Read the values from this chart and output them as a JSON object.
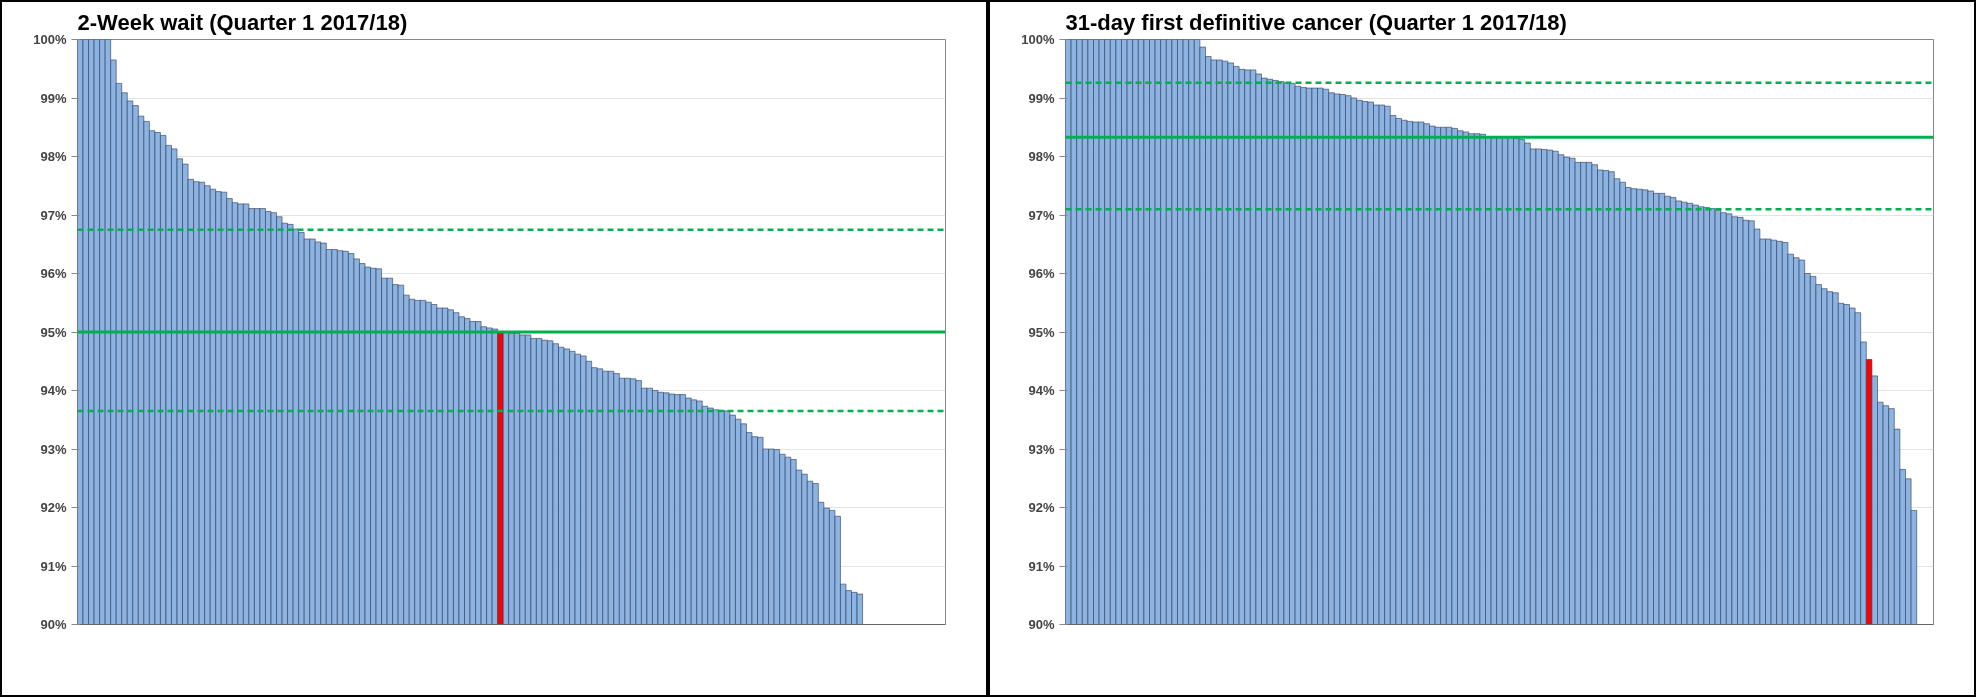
{
  "chart_data": [
    {
      "type": "bar",
      "title": "2-Week wait (Quarter 1 2017/18)",
      "categories": [
        null,
        null,
        null,
        null,
        null,
        null,
        null,
        null,
        null,
        null,
        null,
        null,
        null,
        null,
        null,
        null,
        null,
        null,
        null,
        null,
        null,
        null,
        null,
        null,
        null,
        null,
        null,
        null,
        null,
        null,
        null,
        null,
        null,
        null,
        null,
        null,
        null,
        null,
        null,
        null,
        null,
        null,
        null,
        null,
        null,
        null,
        null,
        null,
        null,
        null,
        null,
        null,
        null,
        null,
        null,
        null,
        null,
        null,
        null,
        null,
        null,
        null,
        null,
        null,
        null,
        null,
        null,
        null,
        null,
        null,
        null,
        null,
        null,
        null,
        null,
        null,
        null,
        null,
        null,
        null,
        null,
        null,
        null,
        null,
        null,
        null,
        null,
        null,
        null,
        null,
        null,
        null,
        null,
        null,
        null,
        null,
        null,
        null,
        null,
        null,
        null,
        null,
        null,
        null,
        null,
        null,
        null,
        null,
        null,
        null,
        null,
        null,
        null,
        null,
        null,
        null,
        null,
        null,
        null,
        null,
        null,
        null,
        null,
        null,
        null,
        null,
        null,
        null,
        null,
        null,
        null,
        null,
        null,
        null,
        null,
        null,
        null,
        null,
        null,
        null,
        null,
        null,
        null,
        null,
        null,
        null,
        null,
        null,
        null,
        null,
        null,
        null,
        null,
        null,
        null,
        null,
        null
      ],
      "values": [
        100,
        100,
        100,
        100,
        100,
        100,
        99.65,
        99.25,
        99.09,
        98.95,
        98.87,
        98.69,
        98.6,
        98.44,
        98.41,
        98.36,
        98.19,
        98.13,
        97.96,
        97.87,
        97.61,
        97.57,
        97.56,
        97.5,
        97.44,
        97.4,
        97.39,
        97.28,
        97.21,
        97.19,
        97.19,
        97.11,
        97.11,
        97.11,
        97.06,
        97.04,
        96.97,
        96.86,
        96.84,
        96.76,
        96.7,
        96.59,
        96.59,
        96.54,
        96.52,
        96.41,
        96.41,
        96.39,
        96.38,
        96.34,
        96.25,
        96.17,
        96.11,
        96.09,
        96.08,
        95.92,
        95.92,
        95.81,
        95.8,
        95.63,
        95.56,
        95.54,
        95.54,
        95.51,
        95.47,
        95.41,
        95.41,
        95.38,
        95.33,
        95.26,
        95.23,
        95.18,
        95.18,
        95.09,
        95.07,
        95.05,
        94.99,
        94.99,
        94.98,
        94.98,
        94.95,
        94.95,
        94.89,
        94.89,
        94.86,
        94.85,
        94.8,
        94.74,
        94.71,
        94.67,
        94.62,
        94.59,
        94.5,
        94.39,
        94.37,
        94.33,
        94.33,
        94.29,
        94.21,
        94.21,
        94.2,
        94.17,
        94.04,
        94.04,
        94.0,
        93.97,
        93.96,
        93.94,
        93.93,
        93.93,
        93.87,
        93.84,
        93.82,
        93.73,
        93.7,
        93.67,
        93.66,
        93.65,
        93.58,
        93.51,
        93.43,
        93.28,
        93.21,
        93.2,
        93.0,
        93.0,
        92.99,
        92.91,
        92.86,
        92.82,
        92.64,
        92.57,
        92.45,
        92.41,
        92.09,
        91.99,
        91.95,
        91.85,
        90.69,
        90.58,
        90.55,
        90.52,
        null,
        null,
        null,
        null,
        null,
        null,
        null,
        null,
        null,
        null,
        null,
        null,
        null,
        null,
        null
      ],
      "colors": [
        "#8db3e2",
        "#8db3e2",
        "#8db3e2",
        "#8db3e2",
        "#8db3e2",
        "#8db3e2",
        "#8db3e2",
        "#8db3e2",
        "#8db3e2",
        "#8db3e2",
        "#8db3e2",
        "#8db3e2",
        "#8db3e2",
        "#8db3e2",
        "#8db3e2",
        "#8db3e2",
        "#8db3e2",
        "#8db3e2",
        "#8db3e2",
        "#8db3e2",
        "#8db3e2",
        "#8db3e2",
        "#8db3e2",
        "#8db3e2",
        "#8db3e2",
        "#8db3e2",
        "#8db3e2",
        "#8db3e2",
        "#8db3e2",
        "#8db3e2",
        "#8db3e2",
        "#8db3e2",
        "#8db3e2",
        "#8db3e2",
        "#8db3e2",
        "#8db3e2",
        "#8db3e2",
        "#8db3e2",
        "#8db3e2",
        "#8db3e2",
        "#8db3e2",
        "#8db3e2",
        "#8db3e2",
        "#8db3e2",
        "#8db3e2",
        "#8db3e2",
        "#8db3e2",
        "#8db3e2",
        "#8db3e2",
        "#8db3e2",
        "#8db3e2",
        "#8db3e2",
        "#8db3e2",
        "#8db3e2",
        "#8db3e2",
        "#8db3e2",
        "#8db3e2",
        "#8db3e2",
        "#8db3e2",
        "#8db3e2",
        "#8db3e2",
        "#8db3e2",
        "#8db3e2",
        "#8db3e2",
        "#8db3e2",
        "#8db3e2",
        "#8db3e2",
        "#8db3e2",
        "#8db3e2",
        "#8db3e2",
        "#8db3e2",
        "#8db3e2",
        "#8db3e2",
        "#8db3e2",
        "#8db3e2",
        "#8db3e2",
        "#ff0000",
        "#8db3e2",
        "#8db3e2",
        "#8db3e2",
        "#8db3e2",
        "#8db3e2",
        "#8db3e2",
        "#8db3e2",
        "#8db3e2",
        "#8db3e2",
        "#8db3e2",
        "#8db3e2",
        "#8db3e2",
        "#8db3e2",
        "#8db3e2",
        "#8db3e2",
        "#8db3e2",
        "#8db3e2",
        "#8db3e2",
        "#8db3e2",
        "#8db3e2",
        "#8db3e2",
        "#8db3e2",
        "#8db3e2",
        "#8db3e2",
        "#8db3e2",
        "#8db3e2",
        "#8db3e2",
        "#8db3e2",
        "#8db3e2",
        "#8db3e2",
        "#8db3e2",
        "#8db3e2",
        "#8db3e2",
        "#8db3e2",
        "#8db3e2",
        "#8db3e2",
        "#8db3e2",
        "#8db3e2",
        "#8db3e2",
        "#8db3e2",
        "#8db3e2",
        "#8db3e2",
        "#8db3e2",
        "#8db3e2",
        "#8db3e2",
        "#8db3e2",
        "#8db3e2",
        "#8db3e2",
        "#8db3e2",
        "#8db3e2",
        "#8db3e2",
        "#8db3e2",
        "#8db3e2",
        "#8db3e2",
        "#8db3e2",
        "#8db3e2",
        "#8db3e2",
        "#8db3e2",
        "#8db3e2",
        "#8db3e2",
        "#8db3e2",
        "#8db3e2",
        "#8db3e2",
        "#8db3e2",
        "#8db3e2",
        "#8db3e2",
        "#8db3e2",
        "#8db3e2",
        "#8db3e2",
        "#8db3e2",
        "#8db3e2",
        "#8db3e2",
        "#8db3e2",
        "#8db3e2",
        "#8db3e2",
        "#8db3e2",
        "#8db3e2",
        "#8db3e2",
        "#8db3e2",
        "#8db3e2"
      ],
      "ylim": [
        90,
        100
      ],
      "yticks": [
        {
          "value": 90,
          "label": "90%"
        },
        {
          "value": 91,
          "label": "91%"
        },
        {
          "value": 92,
          "label": "92%"
        },
        {
          "value": 93,
          "label": "93%"
        },
        {
          "value": 94,
          "label": "94%"
        },
        {
          "value": 95,
          "label": "95%"
        },
        {
          "value": 96,
          "label": "96%"
        },
        {
          "value": 97,
          "label": "97%"
        },
        {
          "value": 98,
          "label": "98%"
        },
        {
          "value": 99,
          "label": "99%"
        },
        {
          "value": 100,
          "label": "100%"
        }
      ],
      "grid": "y",
      "ref_lines": [
        {
          "axis": "y",
          "value": 96.75,
          "color": "#00b050",
          "line_style": "dashed"
        },
        {
          "axis": "y",
          "value": 95.0,
          "color": "#00b050",
          "line_style": "solid"
        },
        {
          "axis": "y",
          "value": 93.65,
          "color": "#00b050",
          "line_style": "dashed"
        }
      ]
    },
    {
      "type": "bar",
      "title": "31-day first definitive cancer (Quarter 1 2017/18)",
      "categories": [
        null,
        null,
        null,
        null,
        null,
        null,
        null,
        null,
        null,
        null,
        null,
        null,
        null,
        null,
        null,
        null,
        null,
        null,
        null,
        null,
        null,
        null,
        null,
        null,
        null,
        null,
        null,
        null,
        null,
        null,
        null,
        null,
        null,
        null,
        null,
        null,
        null,
        null,
        null,
        null,
        null,
        null,
        null,
        null,
        null,
        null,
        null,
        null,
        null,
        null,
        null,
        null,
        null,
        null,
        null,
        null,
        null,
        null,
        null,
        null,
        null,
        null,
        null,
        null,
        null,
        null,
        null,
        null,
        null,
        null,
        null,
        null,
        null,
        null,
        null,
        null,
        null,
        null,
        null,
        null,
        null,
        null,
        null,
        null,
        null,
        null,
        null,
        null,
        null,
        null,
        null,
        null,
        null,
        null,
        null,
        null,
        null,
        null,
        null,
        null,
        null,
        null,
        null,
        null,
        null,
        null,
        null,
        null,
        null,
        null,
        null,
        null,
        null,
        null,
        null,
        null,
        null,
        null,
        null,
        null,
        null,
        null,
        null,
        null,
        null,
        null,
        null,
        null,
        null,
        null,
        null,
        null,
        null,
        null,
        null,
        null,
        null,
        null,
        null,
        null,
        null,
        null,
        null,
        null,
        null,
        null,
        null,
        null,
        null,
        null,
        null,
        null,
        null,
        null,
        null
      ],
      "values": [
        100,
        100,
        100,
        100,
        100,
        100,
        100,
        100,
        100,
        100,
        100,
        100,
        100,
        100,
        100,
        100,
        100,
        100,
        100,
        100,
        100,
        100,
        100,
        100,
        99.87,
        99.71,
        99.65,
        99.65,
        99.63,
        99.6,
        99.54,
        99.49,
        99.48,
        99.48,
        99.41,
        99.34,
        99.32,
        99.3,
        99.28,
        99.26,
        99.25,
        99.2,
        99.18,
        99.17,
        99.17,
        99.17,
        99.15,
        99.09,
        99.07,
        99.06,
        99.04,
        99.0,
        98.96,
        98.94,
        98.93,
        98.88,
        98.88,
        98.86,
        98.7,
        98.65,
        98.62,
        98.6,
        98.59,
        98.59,
        98.56,
        98.52,
        98.5,
        98.5,
        98.5,
        98.48,
        98.44,
        98.42,
        98.39,
        98.39,
        98.38,
        98.34,
        98.33,
        98.33,
        98.33,
        98.33,
        98.31,
        98.29,
        98.23,
        98.13,
        98.13,
        98.12,
        98.11,
        98.09,
        98.03,
        97.99,
        97.97,
        97.9,
        97.9,
        97.9,
        97.86,
        97.77,
        97.76,
        97.74,
        97.62,
        97.56,
        97.47,
        97.45,
        97.44,
        97.43,
        97.41,
        97.37,
        97.37,
        97.32,
        97.3,
        97.24,
        97.22,
        97.2,
        97.17,
        97.14,
        97.13,
        97.11,
        97.09,
        97.04,
        97.02,
        96.97,
        96.96,
        96.91,
        96.9,
        96.76,
        96.59,
        96.59,
        96.57,
        96.55,
        96.53,
        96.33,
        96.27,
        96.23,
        96.0,
        95.95,
        95.81,
        95.74,
        95.69,
        95.67,
        95.49,
        95.47,
        95.41,
        95.33,
        94.83,
        94.53,
        94.25,
        93.8,
        93.74,
        93.69,
        93.34,
        92.65,
        92.49,
        91.95,
        null,
        null,
        null
      ],
      "colors": [
        "#8db3e2",
        "#8db3e2",
        "#8db3e2",
        "#8db3e2",
        "#8db3e2",
        "#8db3e2",
        "#8db3e2",
        "#8db3e2",
        "#8db3e2",
        "#8db3e2",
        "#8db3e2",
        "#8db3e2",
        "#8db3e2",
        "#8db3e2",
        "#8db3e2",
        "#8db3e2",
        "#8db3e2",
        "#8db3e2",
        "#8db3e2",
        "#8db3e2",
        "#8db3e2",
        "#8db3e2",
        "#8db3e2",
        "#8db3e2",
        "#8db3e2",
        "#8db3e2",
        "#8db3e2",
        "#8db3e2",
        "#8db3e2",
        "#8db3e2",
        "#8db3e2",
        "#8db3e2",
        "#8db3e2",
        "#8db3e2",
        "#8db3e2",
        "#8db3e2",
        "#8db3e2",
        "#8db3e2",
        "#8db3e2",
        "#8db3e2",
        "#8db3e2",
        "#8db3e2",
        "#8db3e2",
        "#8db3e2",
        "#8db3e2",
        "#8db3e2",
        "#8db3e2",
        "#8db3e2",
        "#8db3e2",
        "#8db3e2",
        "#8db3e2",
        "#8db3e2",
        "#8db3e2",
        "#8db3e2",
        "#8db3e2",
        "#8db3e2",
        "#8db3e2",
        "#8db3e2",
        "#8db3e2",
        "#8db3e2",
        "#8db3e2",
        "#8db3e2",
        "#8db3e2",
        "#8db3e2",
        "#8db3e2",
        "#8db3e2",
        "#8db3e2",
        "#8db3e2",
        "#8db3e2",
        "#8db3e2",
        "#8db3e2",
        "#8db3e2",
        "#8db3e2",
        "#8db3e2",
        "#8db3e2",
        "#8db3e2",
        "#8db3e2",
        "#8db3e2",
        "#8db3e2",
        "#8db3e2",
        "#8db3e2",
        "#8db3e2",
        "#8db3e2",
        "#8db3e2",
        "#8db3e2",
        "#8db3e2",
        "#8db3e2",
        "#8db3e2",
        "#8db3e2",
        "#8db3e2",
        "#8db3e2",
        "#8db3e2",
        "#8db3e2",
        "#8db3e2",
        "#8db3e2",
        "#8db3e2",
        "#8db3e2",
        "#8db3e2",
        "#8db3e2",
        "#8db3e2",
        "#8db3e2",
        "#8db3e2",
        "#8db3e2",
        "#8db3e2",
        "#8db3e2",
        "#8db3e2",
        "#8db3e2",
        "#8db3e2",
        "#8db3e2",
        "#8db3e2",
        "#8db3e2",
        "#8db3e2",
        "#8db3e2",
        "#8db3e2",
        "#8db3e2",
        "#8db3e2",
        "#8db3e2",
        "#8db3e2",
        "#8db3e2",
        "#8db3e2",
        "#8db3e2",
        "#8db3e2",
        "#8db3e2",
        "#8db3e2",
        "#8db3e2",
        "#8db3e2",
        "#8db3e2",
        "#8db3e2",
        "#8db3e2",
        "#8db3e2",
        "#8db3e2",
        "#8db3e2",
        "#8db3e2",
        "#8db3e2",
        "#8db3e2",
        "#8db3e2",
        "#8db3e2",
        "#8db3e2",
        "#8db3e2",
        "#8db3e2",
        "#8db3e2",
        "#8db3e2",
        "#8db3e2",
        "#ff0000",
        "#8db3e2",
        "#8db3e2",
        "#8db3e2",
        "#8db3e2",
        "#8db3e2",
        "#8db3e2",
        "#8db3e2",
        "#8db3e2",
        "#8db3e2",
        "#8db3e2",
        "#8db3e2"
      ],
      "ylim": [
        90,
        100
      ],
      "yticks": [
        {
          "value": 90,
          "label": "90%"
        },
        {
          "value": 91,
          "label": "91%"
        },
        {
          "value": 92,
          "label": "92%"
        },
        {
          "value": 93,
          "label": "93%"
        },
        {
          "value": 94,
          "label": "94%"
        },
        {
          "value": 95,
          "label": "95%"
        },
        {
          "value": 96,
          "label": "96%"
        },
        {
          "value": 97,
          "label": "97%"
        },
        {
          "value": 98,
          "label": "98%"
        },
        {
          "value": 99,
          "label": "99%"
        },
        {
          "value": 100,
          "label": "100%"
        }
      ],
      "grid": "y",
      "ref_lines": [
        {
          "axis": "y",
          "value": 99.26,
          "color": "#00b050",
          "line_style": "dashed"
        },
        {
          "axis": "y",
          "value": 98.33,
          "color": "#00b050",
          "line_style": "solid"
        },
        {
          "axis": "y",
          "value": 97.1,
          "color": "#00b050",
          "line_style": "dashed"
        }
      ]
    }
  ]
}
